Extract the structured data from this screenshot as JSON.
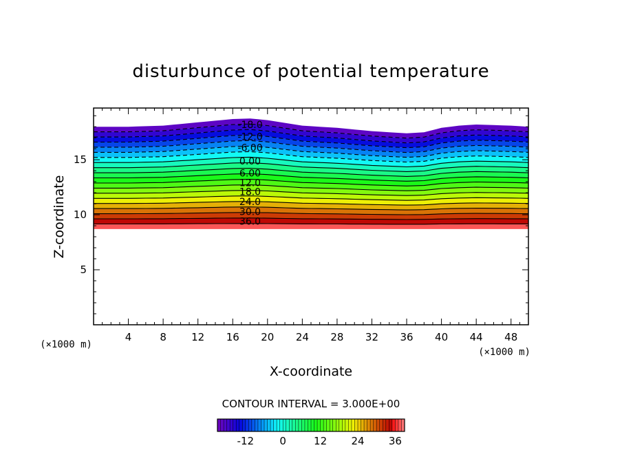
{
  "chart_data": {
    "type": "contour",
    "title": "disturbunce of potential temperature",
    "xlabel": "X-coordinate",
    "ylabel": "Z-coordinate",
    "x_unit": "(×1000 m)",
    "y_unit": "(×1000 m)",
    "xlim": [
      0,
      50
    ],
    "ylim": [
      0,
      19.7
    ],
    "x_ticks": [
      4,
      8,
      12,
      16,
      20,
      24,
      28,
      32,
      36,
      40,
      44,
      48
    ],
    "y_ticks": [
      5,
      10,
      15
    ],
    "contour_interval_text": "CONTOUR INTERVAL = 3.000E+00",
    "contour_interval": 3.0,
    "field_min": -21,
    "field_max": 39,
    "field_bottom_z_km": 8.7,
    "top_surface": [
      {
        "x": 0,
        "z": 18.0
      },
      {
        "x": 4,
        "z": 18.0
      },
      {
        "x": 8,
        "z": 18.1
      },
      {
        "x": 12,
        "z": 18.4
      },
      {
        "x": 16,
        "z": 18.7
      },
      {
        "x": 18,
        "z": 18.75
      },
      {
        "x": 20,
        "z": 18.6
      },
      {
        "x": 24,
        "z": 18.1
      },
      {
        "x": 28,
        "z": 17.9
      },
      {
        "x": 32,
        "z": 17.6
      },
      {
        "x": 36,
        "z": 17.4
      },
      {
        "x": 38,
        "z": 17.5
      },
      {
        "x": 40,
        "z": 17.9
      },
      {
        "x": 42,
        "z": 18.1
      },
      {
        "x": 44,
        "z": 18.2
      },
      {
        "x": 48,
        "z": 18.1
      },
      {
        "x": 50,
        "z": 18.0
      }
    ],
    "labeled_contours": [
      {
        "value": -18,
        "text": "-18.0",
        "z": 18.2
      },
      {
        "value": -12,
        "text": "-12.0",
        "z": 17.1
      },
      {
        "value": -6,
        "text": "-6.00",
        "z": 16.1
      },
      {
        "value": 0,
        "text": "0.00",
        "z": 14.9
      },
      {
        "value": 6,
        "text": "6.00",
        "z": 13.8
      },
      {
        "value": 12,
        "text": "12.0",
        "z": 12.9
      },
      {
        "value": 18,
        "text": "18.0",
        "z": 12.1
      },
      {
        "value": 24,
        "text": "24.0",
        "z": 11.2
      },
      {
        "value": 30,
        "text": "30.0",
        "z": 10.3
      },
      {
        "value": 36,
        "text": "36.0",
        "z": 9.4
      }
    ],
    "label_x": 18,
    "colorbar": {
      "min": -21,
      "max": 39,
      "tick_values": [
        -12,
        0,
        12,
        24,
        36
      ],
      "tick_labels": [
        "-12",
        "0",
        "12",
        "24",
        "36"
      ]
    },
    "grid": false,
    "legend": "colorbar-bottom"
  }
}
